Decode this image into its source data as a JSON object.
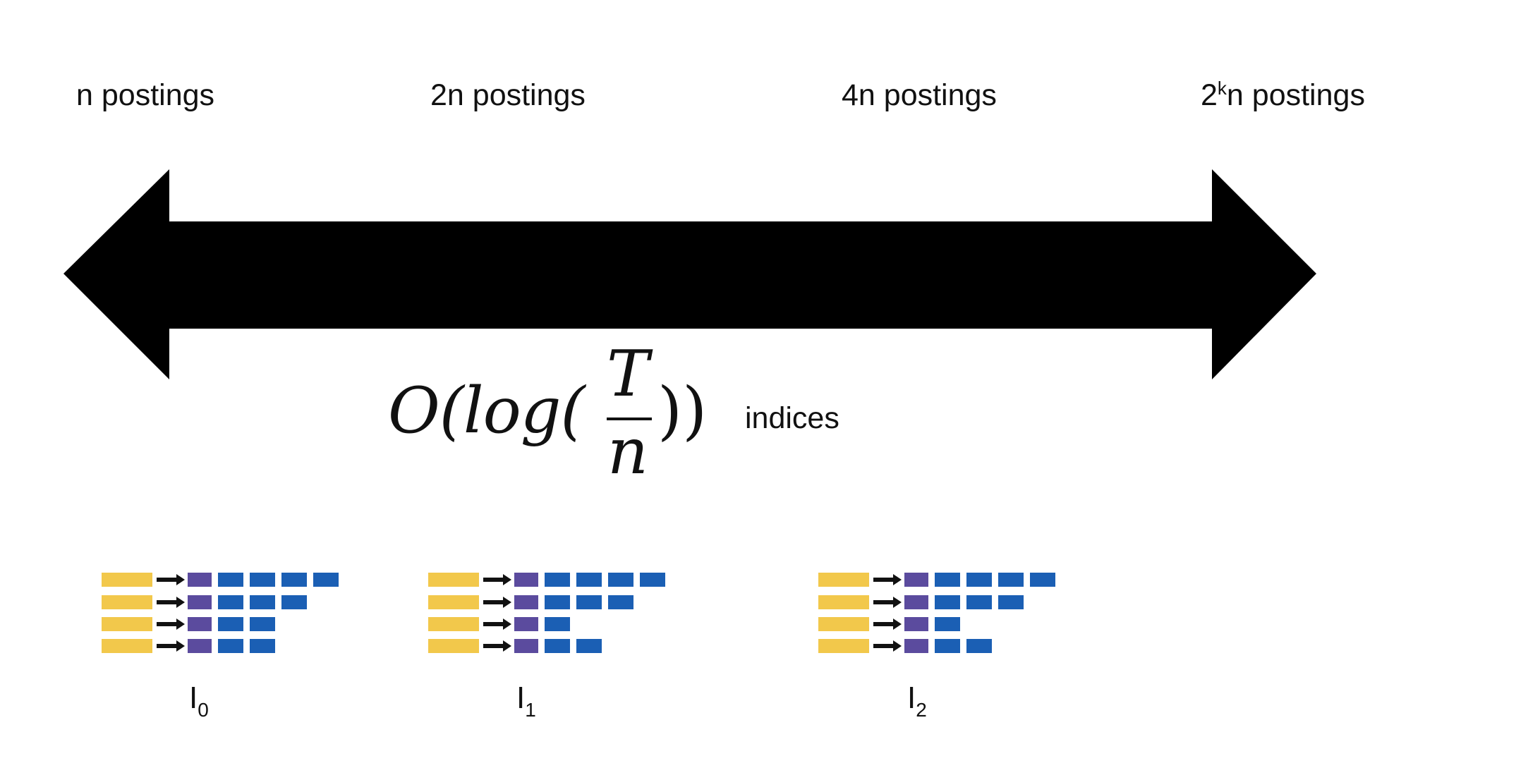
{
  "postings_labels": [
    {
      "prefix": "n postings",
      "sup": "",
      "suffix": ""
    },
    {
      "prefix": "2n postings",
      "sup": "",
      "suffix": ""
    },
    {
      "prefix": "4n postings",
      "sup": "",
      "suffix": ""
    },
    {
      "prefix": "2",
      "sup": "k",
      "suffix": "n postings"
    }
  ],
  "formula": {
    "prefix": "O(log(",
    "numerator": "T",
    "denominator": "n",
    "suffix": "))"
  },
  "indices_label": "indices",
  "indices": [
    {
      "base": "I",
      "sub": "0",
      "rows": [
        4,
        3,
        2,
        2
      ]
    },
    {
      "base": "I",
      "sub": "1",
      "rows": [
        4,
        3,
        1,
        2
      ]
    },
    {
      "base": "I",
      "sub": "2",
      "rows": [
        4,
        3,
        1,
        2
      ]
    }
  ],
  "colors": {
    "arrow": "#000000",
    "term": "#F2C84B",
    "pointer": "#5B4B9E",
    "posting": "#1B5FB4"
  }
}
